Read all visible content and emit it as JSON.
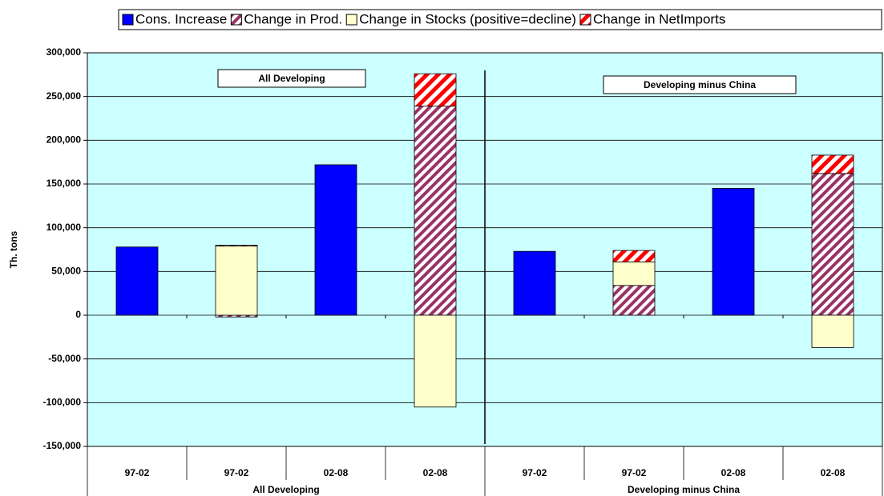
{
  "chart_data": {
    "type": "stacked_bar",
    "y_label": "Th. tons",
    "categories": [
      "97-02",
      "97-02",
      "02-08",
      "02-08",
      "97-02",
      "97-02",
      "02-08",
      "02-08"
    ],
    "groups": [
      "All Developing",
      "Developing minus China"
    ],
    "annotations": [
      "All Developing",
      "Developing minus China"
    ],
    "series": [
      {
        "name": "Cons. Increase",
        "color": "#0000ff",
        "values": [
          78000,
          null,
          172000,
          null,
          73000,
          null,
          145000,
          null
        ]
      },
      {
        "name": "Change in Prod.",
        "color": "#993366",
        "values": [
          null,
          -2000,
          null,
          239000,
          null,
          34000,
          null,
          162000
        ]
      },
      {
        "name": "Change in Stocks (positive=decline)",
        "color": "#ffffcc",
        "values": [
          null,
          79000,
          null,
          -105000,
          null,
          27000,
          null,
          -37000
        ]
      },
      {
        "name": "Change in NetImports",
        "color": "#ff0000",
        "values": [
          null,
          1000,
          null,
          37000,
          null,
          13000,
          null,
          21000
        ]
      }
    ],
    "ylim": [
      -150000,
      300000
    ],
    "yticks": [
      {
        "value": -150000,
        "label": "-150,000"
      },
      {
        "value": -100000,
        "label": "-100,000"
      },
      {
        "value": -50000,
        "label": "-50,000"
      },
      0,
      {
        "value": 50000,
        "label": "50,000"
      },
      {
        "value": 100000,
        "label": "100,000"
      },
      {
        "value": 150000,
        "label": "150,000"
      },
      {
        "value": 200000,
        "label": "200,000"
      },
      {
        "value": 250000,
        "label": "250,000"
      },
      {
        "value": 300000,
        "label": "300,000"
      }
    ],
    "grid": true,
    "background": "#ccffff"
  }
}
